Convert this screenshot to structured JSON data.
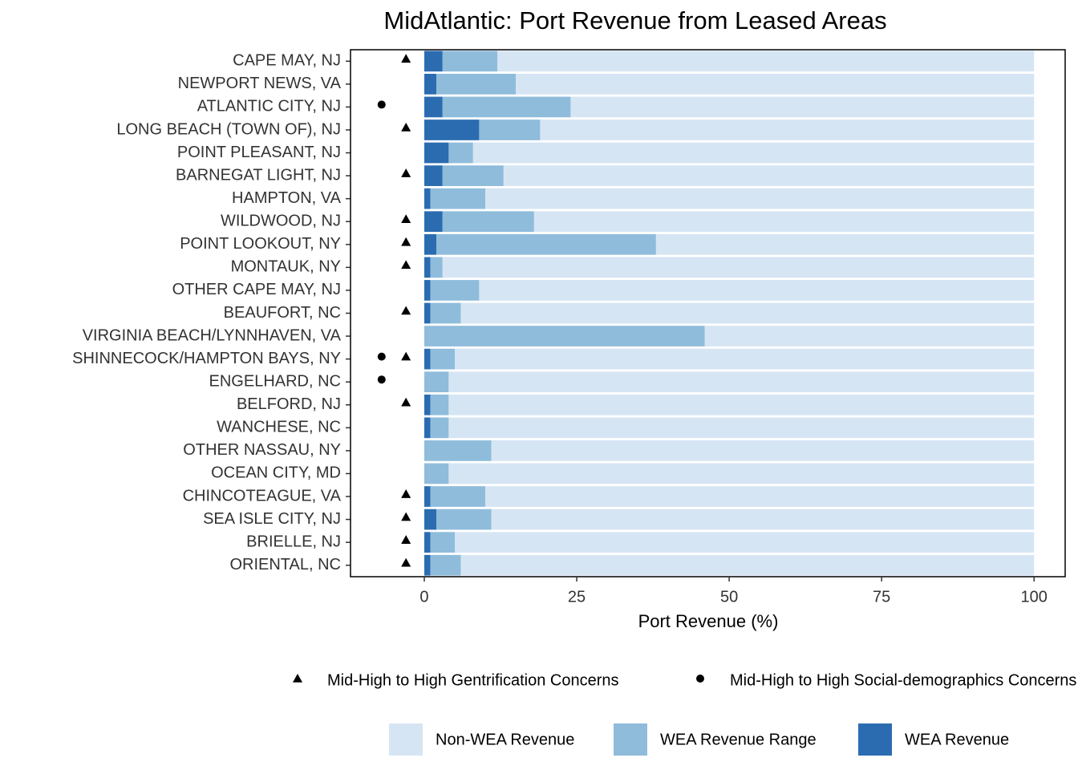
{
  "chart_data": {
    "type": "stacked_barh",
    "title": "MidAtlantic: Port Revenue from Leased Areas",
    "xlabel": "Port Revenue (%)",
    "categories": [
      "CAPE MAY, NJ",
      "NEWPORT NEWS, VA",
      "ATLANTIC CITY, NJ",
      "LONG BEACH (TOWN OF), NJ",
      "POINT PLEASANT, NJ",
      "BARNEGAT LIGHT, NJ",
      "HAMPTON, VA",
      "WILDWOOD, NJ",
      "POINT LOOKOUT, NY",
      "MONTAUK, NY",
      "OTHER CAPE MAY, NJ",
      "BEAUFORT, NC",
      "VIRGINIA BEACH/LYNNHAVEN, VA",
      "SHINNECOCK/HAMPTON BAYS, NY",
      "ENGELHARD, NC",
      "BELFORD, NJ",
      "WANCHESE, NC",
      "OTHER NASSAU, NY",
      "OCEAN CITY, MD",
      "CHINCOTEAGUE, VA",
      "SEA ISLE CITY, NJ",
      "BRIELLE, NJ",
      "ORIENTAL, NC"
    ],
    "series": [
      {
        "name": "Non-WEA Revenue",
        "color": "#d6e5f4",
        "values": [
          88,
          85,
          76,
          81,
          92,
          87,
          90,
          82,
          62,
          97,
          91,
          94,
          54,
          95,
          96,
          96,
          96,
          89,
          96,
          90,
          89,
          95,
          94
        ]
      },
      {
        "name": "WEA Revenue Range",
        "color": "#8fbcdb",
        "values": [
          9,
          13,
          21,
          10,
          4,
          10,
          9,
          15,
          36,
          2,
          8,
          5,
          46,
          4,
          4,
          3,
          3,
          11,
          4,
          9,
          9,
          4,
          5
        ]
      },
      {
        "name": "WEA Revenue",
        "color": "#2b6cb1",
        "values": [
          3,
          2,
          3,
          9,
          4,
          3,
          1,
          3,
          2,
          1,
          1,
          1,
          0,
          1,
          0,
          1,
          1,
          0,
          0,
          1,
          2,
          1,
          1
        ]
      }
    ],
    "markers": [
      {
        "name": "Mid-High to High Gentrification Concerns",
        "shape": "triangle",
        "color": "#000000",
        "values": [
          -3,
          null,
          null,
          -3,
          null,
          -3,
          null,
          -3,
          -3,
          -3,
          null,
          -3,
          null,
          -3,
          null,
          -3,
          null,
          null,
          null,
          -3,
          -3,
          -3,
          -3
        ]
      },
      {
        "name": "Mid-High to High Social-demographics Concerns",
        "shape": "circle",
        "color": "#000000",
        "values": [
          null,
          null,
          -7,
          null,
          null,
          null,
          null,
          null,
          null,
          null,
          null,
          null,
          null,
          -7,
          -7,
          null,
          null,
          null,
          null,
          null,
          null,
          null,
          null
        ]
      }
    ],
    "xlim": [
      -12.1,
      105.1
    ],
    "xticks": [
      0,
      25,
      50,
      75,
      100
    ]
  }
}
